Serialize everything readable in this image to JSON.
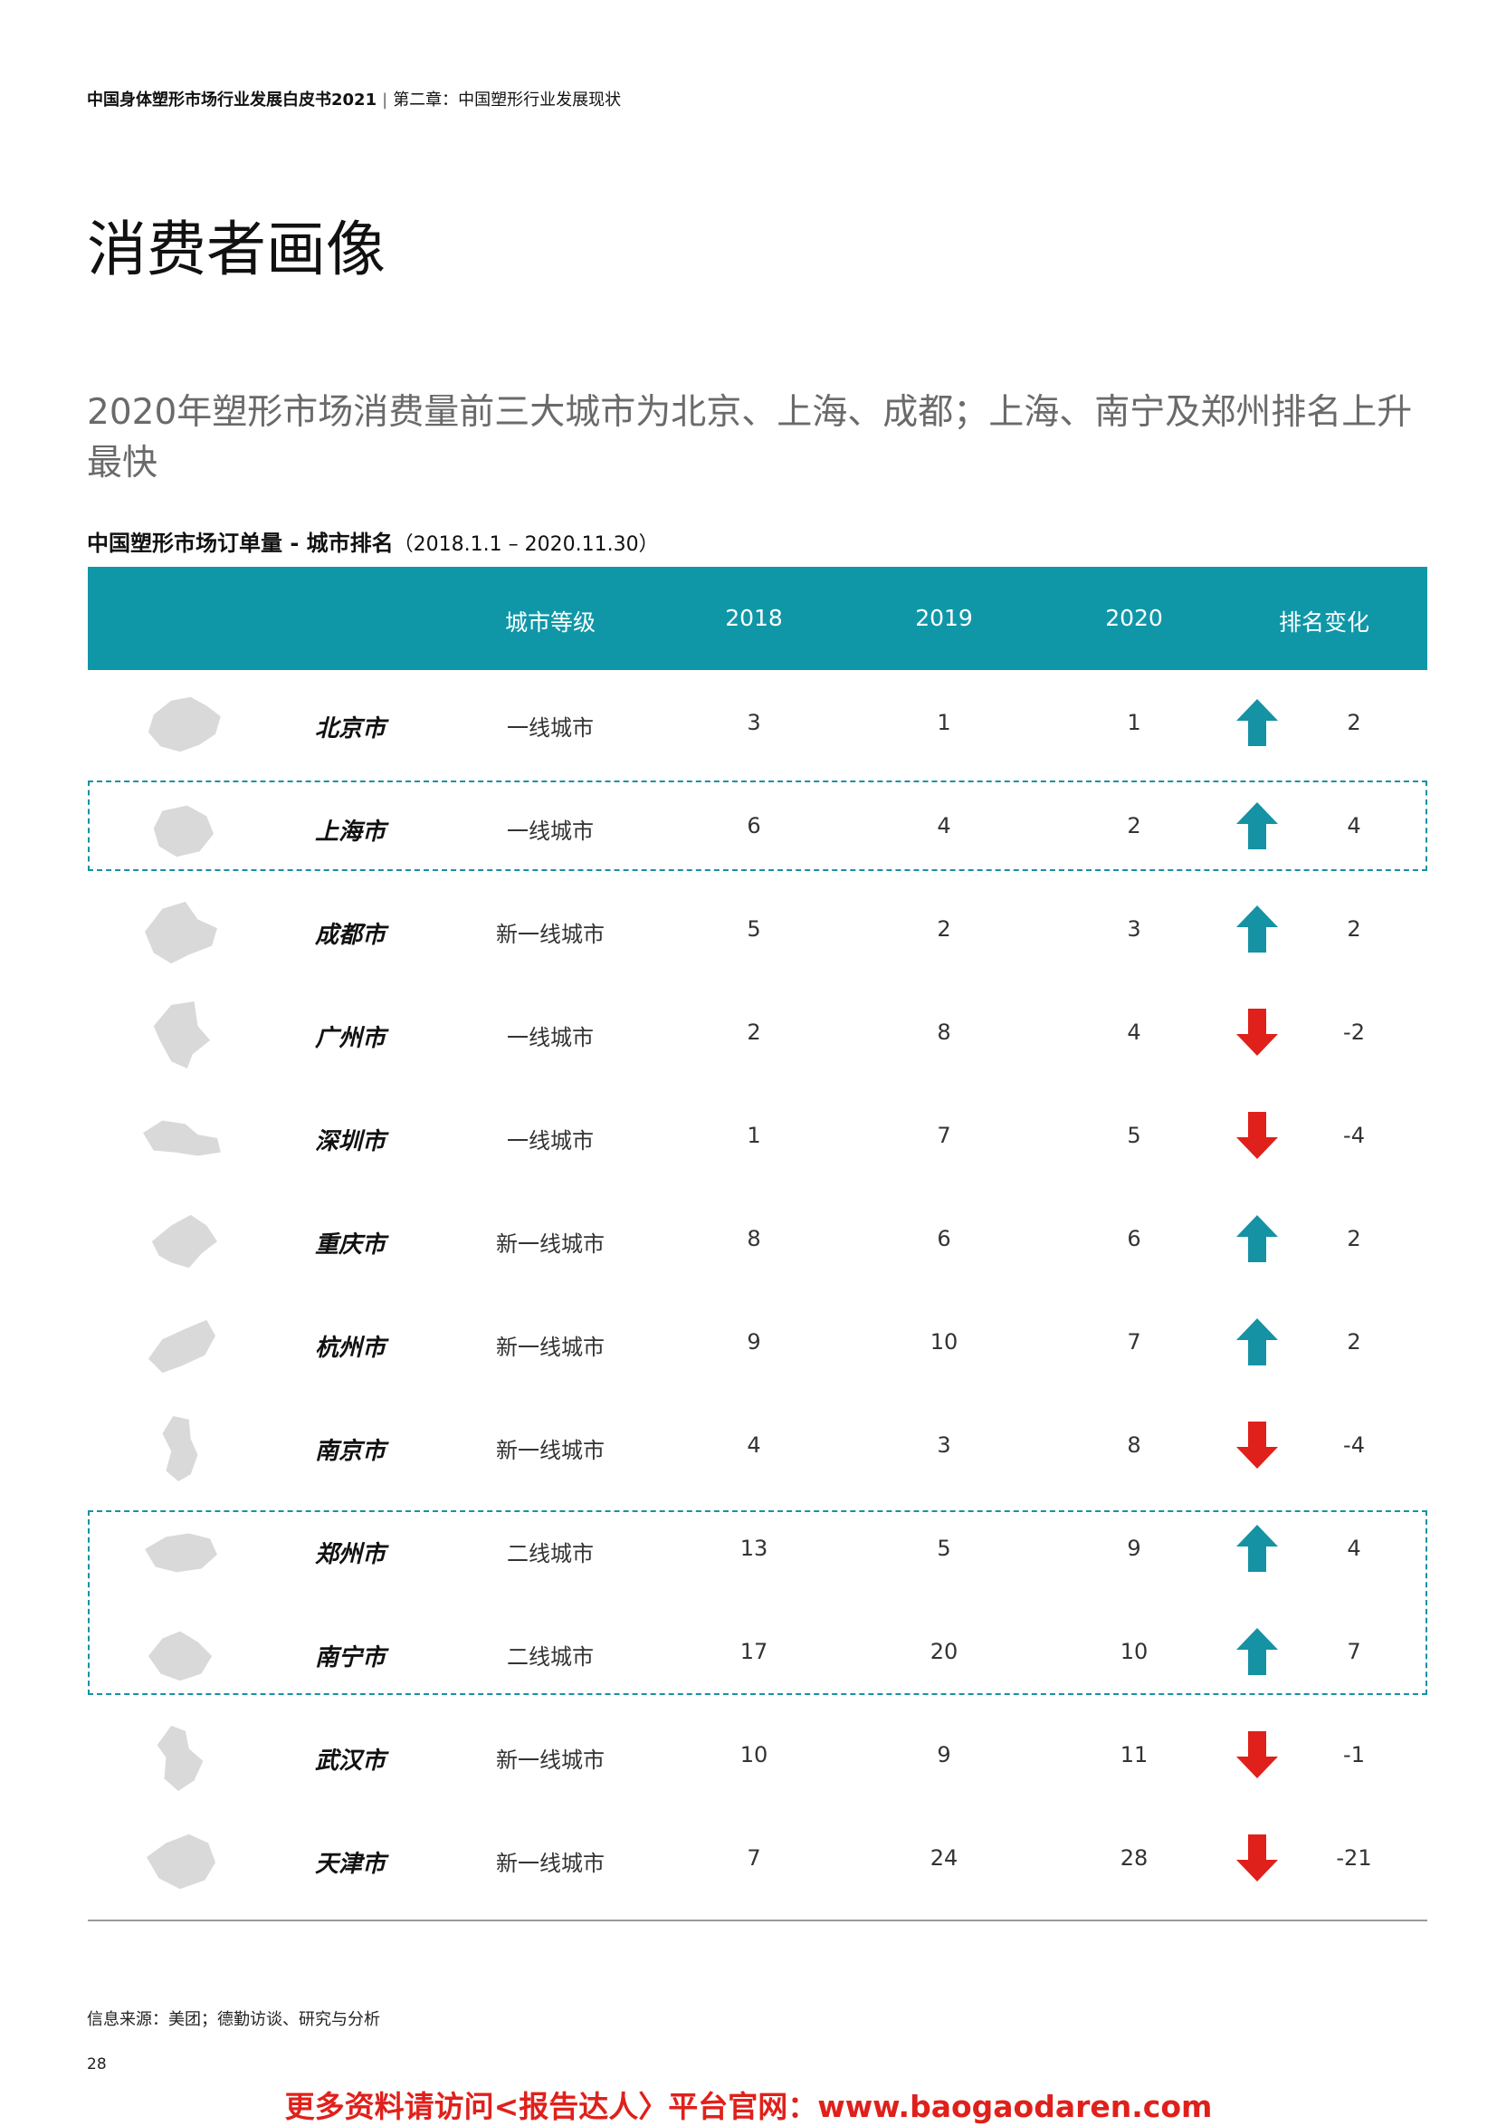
{
  "header": {
    "report": "中国身体塑形市场行业发展白皮书2021",
    "separator": "|",
    "chapter": "第二章：中国塑形行业发展现状"
  },
  "title": "消费者画像",
  "subtitle": "2020年塑形市场消费量前三大城市为北京、上海、成都；上海、南宁及郑州排名上升最快",
  "table_caption": {
    "main": "中国塑形市场订单量 - 城市排名",
    "range": "（2018.1.1 – 2020.11.30）"
  },
  "columns": [
    "城市等级",
    "2018",
    "2019",
    "2020",
    "排名变化"
  ],
  "rows": [
    {
      "city": "北京市",
      "tier": "一线城市",
      "y2018": "3",
      "y2019": "1",
      "y2020": "1",
      "change": "2",
      "dir": "up"
    },
    {
      "city": "上海市",
      "tier": "一线城市",
      "y2018": "6",
      "y2019": "4",
      "y2020": "2",
      "change": "4",
      "dir": "up"
    },
    {
      "city": "成都市",
      "tier": "新一线城市",
      "y2018": "5",
      "y2019": "2",
      "y2020": "3",
      "change": "2",
      "dir": "up"
    },
    {
      "city": "广州市",
      "tier": "一线城市",
      "y2018": "2",
      "y2019": "8",
      "y2020": "4",
      "change": "-2",
      "dir": "down"
    },
    {
      "city": "深圳市",
      "tier": "一线城市",
      "y2018": "1",
      "y2019": "7",
      "y2020": "5",
      "change": "-4",
      "dir": "down"
    },
    {
      "city": "重庆市",
      "tier": "新一线城市",
      "y2018": "8",
      "y2019": "6",
      "y2020": "6",
      "change": "2",
      "dir": "up"
    },
    {
      "city": "杭州市",
      "tier": "新一线城市",
      "y2018": "9",
      "y2019": "10",
      "y2020": "7",
      "change": "2",
      "dir": "up"
    },
    {
      "city": "南京市",
      "tier": "新一线城市",
      "y2018": "4",
      "y2019": "3",
      "y2020": "8",
      "change": "-4",
      "dir": "down"
    },
    {
      "city": "郑州市",
      "tier": "二线城市",
      "y2018": "13",
      "y2019": "5",
      "y2020": "9",
      "change": "4",
      "dir": "up"
    },
    {
      "city": "南宁市",
      "tier": "二线城市",
      "y2018": "17",
      "y2019": "20",
      "y2020": "10",
      "change": "7",
      "dir": "up"
    },
    {
      "city": "武汉市",
      "tier": "新一线城市",
      "y2018": "10",
      "y2019": "9",
      "y2020": "11",
      "change": "-1",
      "dir": "down"
    },
    {
      "city": "天津市",
      "tier": "新一线城市",
      "y2018": "7",
      "y2019": "24",
      "y2020": "28",
      "change": "-21",
      "dir": "down"
    }
  ],
  "colors": {
    "accent": "#0f97a8",
    "up": "#1592a3",
    "down": "#e0201b",
    "map": "#d9d9d9"
  },
  "source": "信息来源：美团；德勤访谈、研究与分析",
  "page_number": "28",
  "footer_link": "更多资料请访问<报告达人〉平台官网：www.baogaodaren.com"
}
